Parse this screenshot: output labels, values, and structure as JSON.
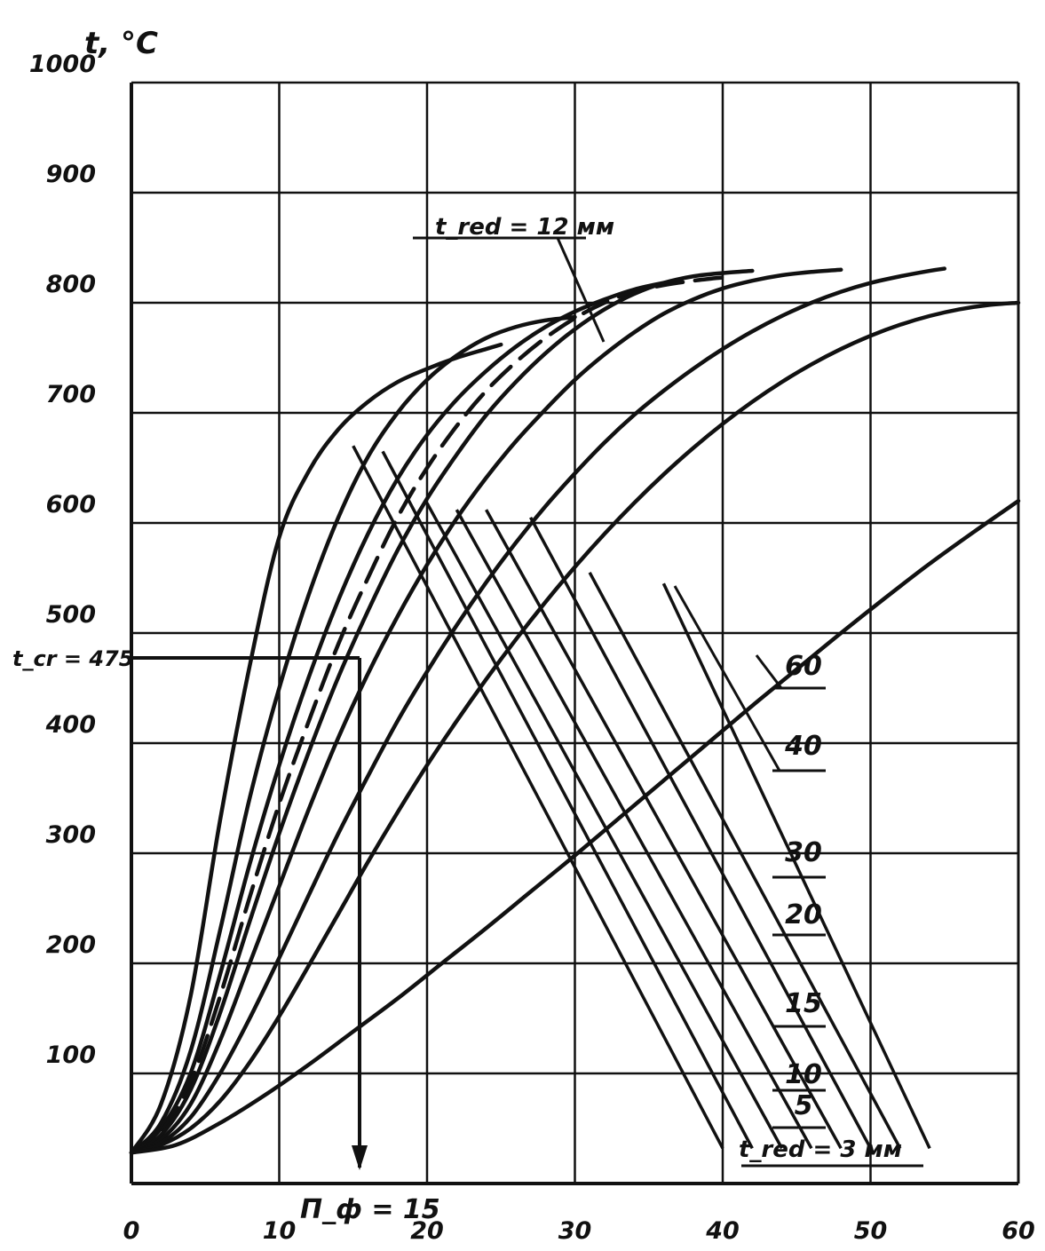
{
  "chart_data": {
    "type": "line",
    "ylabel": "t, °C",
    "xlim": [
      0,
      60
    ],
    "ylim": [
      0,
      1000
    ],
    "x_ticks": [
      "0",
      "10",
      "20",
      "30",
      "40",
      "50",
      "60"
    ],
    "y_ticks": [
      "100",
      "200",
      "300",
      "400",
      "500",
      "600",
      "700",
      "800",
      "900",
      "1000"
    ],
    "grid": true,
    "annotations": {
      "critical_temp": "t_cr = 475",
      "critical_x": "П_ф = 15",
      "top_label": "t_red = 12 мм",
      "bottom_label": "t_red = 3 мм"
    },
    "series": [
      {
        "name": "3",
        "points": [
          [
            0,
            28
          ],
          [
            2,
            72
          ],
          [
            4,
            170
          ],
          [
            6,
            330
          ],
          [
            8,
            470
          ],
          [
            10,
            587
          ],
          [
            12,
            647
          ],
          [
            14,
            685
          ],
          [
            16,
            710
          ],
          [
            18,
            728
          ],
          [
            20,
            740
          ],
          [
            22,
            750
          ],
          [
            24,
            758
          ],
          [
            25,
            762
          ]
        ]
      },
      {
        "name": "5",
        "points": [
          [
            0,
            28
          ],
          [
            2,
            55
          ],
          [
            4,
            120
          ],
          [
            6,
            230
          ],
          [
            8,
            350
          ],
          [
            10,
            450
          ],
          [
            12,
            535
          ],
          [
            14,
            605
          ],
          [
            16,
            660
          ],
          [
            18,
            700
          ],
          [
            20,
            730
          ],
          [
            22,
            752
          ],
          [
            24,
            768
          ],
          [
            26,
            778
          ],
          [
            28,
            784
          ],
          [
            30,
            787
          ]
        ]
      },
      {
        "name": "10",
        "points": [
          [
            0,
            28
          ],
          [
            2,
            50
          ],
          [
            4,
            100
          ],
          [
            6,
            190
          ],
          [
            8,
            290
          ],
          [
            10,
            380
          ],
          [
            12,
            460
          ],
          [
            14,
            530
          ],
          [
            16,
            590
          ],
          [
            18,
            640
          ],
          [
            20,
            680
          ],
          [
            22,
            712
          ],
          [
            24,
            738
          ],
          [
            26,
            760
          ],
          [
            28,
            778
          ],
          [
            30,
            792
          ],
          [
            32,
            803
          ],
          [
            34,
            812
          ],
          [
            36,
            818
          ],
          [
            37,
            820
          ]
        ]
      },
      {
        "name": "12",
        "points": [
          [
            0,
            28
          ],
          [
            2,
            47
          ],
          [
            4,
            92
          ],
          [
            6,
            170
          ],
          [
            8,
            260
          ],
          [
            10,
            345
          ],
          [
            12,
            420
          ],
          [
            14,
            490
          ],
          [
            16,
            550
          ],
          [
            18,
            605
          ],
          [
            20,
            650
          ],
          [
            22,
            688
          ],
          [
            24,
            720
          ],
          [
            26,
            746
          ],
          [
            28,
            768
          ],
          [
            30,
            786
          ],
          [
            32,
            800
          ],
          [
            34,
            810
          ],
          [
            36,
            816
          ],
          [
            38,
            820
          ],
          [
            40,
            823
          ]
        ]
      },
      {
        "name": "15",
        "points": [
          [
            0,
            28
          ],
          [
            2,
            44
          ],
          [
            4,
            85
          ],
          [
            6,
            155
          ],
          [
            8,
            238
          ],
          [
            10,
            318
          ],
          [
            12,
            392
          ],
          [
            14,
            460
          ],
          [
            16,
            520
          ],
          [
            18,
            575
          ],
          [
            20,
            622
          ],
          [
            22,
            662
          ],
          [
            24,
            698
          ],
          [
            26,
            728
          ],
          [
            28,
            754
          ],
          [
            30,
            776
          ],
          [
            32,
            794
          ],
          [
            34,
            808
          ],
          [
            36,
            818
          ],
          [
            38,
            824
          ],
          [
            40,
            827
          ],
          [
            42,
            829
          ]
        ]
      },
      {
        "name": "20",
        "points": [
          [
            0,
            28
          ],
          [
            2,
            40
          ],
          [
            4,
            72
          ],
          [
            6,
            130
          ],
          [
            8,
            200
          ],
          [
            10,
            270
          ],
          [
            12,
            340
          ],
          [
            14,
            405
          ],
          [
            16,
            463
          ],
          [
            18,
            515
          ],
          [
            20,
            562
          ],
          [
            22,
            604
          ],
          [
            24,
            641
          ],
          [
            26,
            674
          ],
          [
            28,
            703
          ],
          [
            30,
            730
          ],
          [
            32,
            753
          ],
          [
            34,
            773
          ],
          [
            36,
            790
          ],
          [
            38,
            803
          ],
          [
            40,
            813
          ],
          [
            42,
            820
          ],
          [
            44,
            825
          ],
          [
            46,
            828
          ],
          [
            48,
            830
          ]
        ]
      },
      {
        "name": "30",
        "points": [
          [
            0,
            28
          ],
          [
            2,
            37
          ],
          [
            4,
            60
          ],
          [
            6,
            100
          ],
          [
            8,
            150
          ],
          [
            10,
            205
          ],
          [
            12,
            262
          ],
          [
            14,
            318
          ],
          [
            16,
            370
          ],
          [
            18,
            420
          ],
          [
            20,
            465
          ],
          [
            22,
            507
          ],
          [
            24,
            546
          ],
          [
            26,
            582
          ],
          [
            28,
            615
          ],
          [
            30,
            645
          ],
          [
            32,
            673
          ],
          [
            34,
            698
          ],
          [
            36,
            720
          ],
          [
            38,
            740
          ],
          [
            40,
            758
          ],
          [
            42,
            774
          ],
          [
            44,
            788
          ],
          [
            46,
            800
          ],
          [
            48,
            810
          ],
          [
            50,
            818
          ],
          [
            52,
            824
          ],
          [
            54,
            829
          ],
          [
            55,
            831
          ]
        ]
      },
      {
        "name": "40",
        "points": [
          [
            0,
            28
          ],
          [
            2,
            35
          ],
          [
            4,
            50
          ],
          [
            6,
            75
          ],
          [
            8,
            110
          ],
          [
            10,
            152
          ],
          [
            12,
            198
          ],
          [
            14,
            245
          ],
          [
            16,
            292
          ],
          [
            18,
            337
          ],
          [
            20,
            380
          ],
          [
            22,
            420
          ],
          [
            24,
            458
          ],
          [
            26,
            494
          ],
          [
            28,
            528
          ],
          [
            30,
            560
          ],
          [
            32,
            590
          ],
          [
            34,
            618
          ],
          [
            36,
            644
          ],
          [
            38,
            668
          ],
          [
            40,
            690
          ],
          [
            42,
            710
          ],
          [
            44,
            728
          ],
          [
            46,
            744
          ],
          [
            48,
            758
          ],
          [
            50,
            770
          ],
          [
            52,
            780
          ],
          [
            54,
            788
          ],
          [
            56,
            794
          ],
          [
            58,
            798
          ],
          [
            60,
            800
          ]
        ]
      },
      {
        "name": "60",
        "points": [
          [
            0,
            28
          ],
          [
            3,
            35
          ],
          [
            6,
            55
          ],
          [
            9,
            80
          ],
          [
            12,
            108
          ],
          [
            15,
            138
          ],
          [
            18,
            168
          ],
          [
            21,
            200
          ],
          [
            24,
            232
          ],
          [
            27,
            265
          ],
          [
            30,
            298
          ],
          [
            33,
            332
          ],
          [
            36,
            366
          ],
          [
            39,
            400
          ],
          [
            42,
            434
          ],
          [
            45,
            467
          ],
          [
            48,
            500
          ],
          [
            51,
            532
          ],
          [
            54,
            563
          ],
          [
            57,
            592
          ],
          [
            60,
            620
          ]
        ]
      }
    ],
    "diagonal_lines": [
      [
        [
          15,
          670
        ],
        [
          40,
          32
        ]
      ],
      [
        [
          17,
          665
        ],
        [
          42,
          32
        ]
      ],
      [
        [
          20,
          618
        ],
        [
          44,
          32
        ]
      ],
      [
        [
          22,
          612
        ],
        [
          46,
          32
        ]
      ],
      [
        [
          24,
          612
        ],
        [
          48,
          32
        ]
      ],
      [
        [
          27,
          605
        ],
        [
          50,
          32
        ]
      ],
      [
        [
          31,
          555
        ],
        [
          52,
          32
        ]
      ],
      [
        [
          36,
          545
        ],
        [
          54,
          32
        ]
      ]
    ],
    "right_labels": [
      "60",
      "40",
      "30",
      "20",
      "15",
      "10",
      "5"
    ]
  }
}
